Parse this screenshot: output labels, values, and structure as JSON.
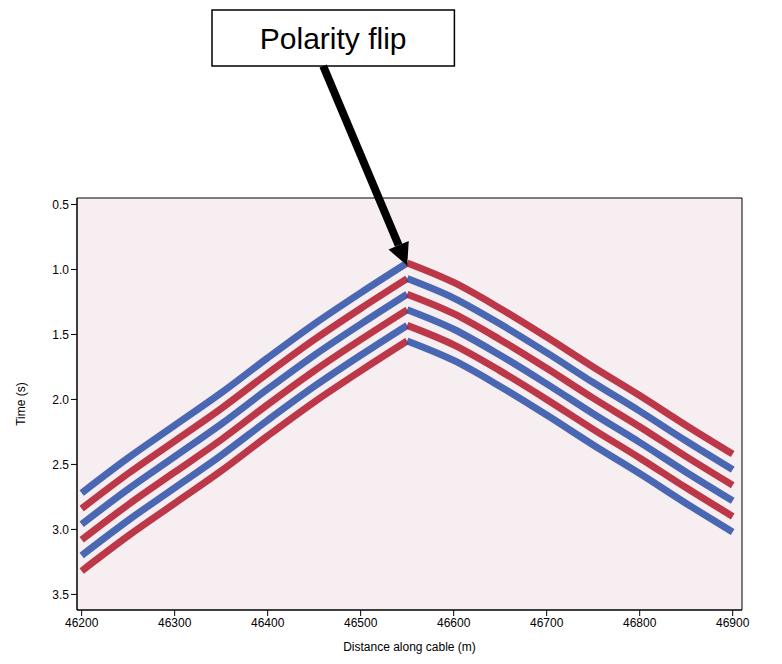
{
  "chart_data": {
    "type": "line",
    "x_label": "Distance along cable (m)",
    "y_label": "Time (s)",
    "annotations": [
      {
        "text": "Polarity flip",
        "x": 46550,
        "y": 0.97
      }
    ],
    "x": [
      46200,
      46250,
      46300,
      46350,
      46400,
      46450,
      46500,
      46550,
      46600,
      46650,
      46700,
      46750,
      46800,
      46850,
      46900
    ],
    "series": [
      {
        "color": "#2c4fa8",
        "values": [
          2.72,
          2.45,
          2.2,
          1.95,
          1.68,
          1.42,
          1.18,
          0.95,
          null,
          null,
          null,
          null,
          null,
          null,
          null
        ]
      },
      {
        "color": "#b2182b",
        "values": [
          2.84,
          2.57,
          2.32,
          2.07,
          1.8,
          1.54,
          1.3,
          1.07,
          null,
          null,
          null,
          null,
          null,
          null,
          null
        ]
      },
      {
        "color": "#2c4fa8",
        "values": [
          2.96,
          2.69,
          2.44,
          2.19,
          1.92,
          1.66,
          1.42,
          1.19,
          null,
          null,
          null,
          null,
          null,
          null,
          null
        ]
      },
      {
        "color": "#b2182b",
        "values": [
          3.08,
          2.81,
          2.56,
          2.31,
          2.04,
          1.78,
          1.54,
          1.31,
          null,
          null,
          null,
          null,
          null,
          null,
          null
        ]
      },
      {
        "color": "#2c4fa8",
        "values": [
          3.2,
          2.93,
          2.68,
          2.43,
          2.16,
          1.9,
          1.66,
          1.43,
          null,
          null,
          null,
          null,
          null,
          null,
          null
        ]
      },
      {
        "color": "#b2182b",
        "values": [
          3.32,
          3.05,
          2.8,
          2.55,
          2.28,
          2.02,
          1.78,
          1.55,
          null,
          null,
          null,
          null,
          null,
          null,
          null
        ]
      },
      {
        "color": "#b2182b",
        "values": [
          null,
          null,
          null,
          null,
          null,
          null,
          null,
          0.95,
          1.1,
          1.3,
          1.52,
          1.75,
          1.97,
          2.2,
          2.42
        ]
      },
      {
        "color": "#2c4fa8",
        "values": [
          null,
          null,
          null,
          null,
          null,
          null,
          null,
          1.07,
          1.22,
          1.42,
          1.64,
          1.87,
          2.09,
          2.32,
          2.54
        ]
      },
      {
        "color": "#b2182b",
        "values": [
          null,
          null,
          null,
          null,
          null,
          null,
          null,
          1.19,
          1.34,
          1.54,
          1.76,
          1.99,
          2.21,
          2.44,
          2.66
        ]
      },
      {
        "color": "#2c4fa8",
        "values": [
          null,
          null,
          null,
          null,
          null,
          null,
          null,
          1.31,
          1.46,
          1.66,
          1.88,
          2.11,
          2.33,
          2.56,
          2.78
        ]
      },
      {
        "color": "#b2182b",
        "values": [
          null,
          null,
          null,
          null,
          null,
          null,
          null,
          1.43,
          1.58,
          1.78,
          2.0,
          2.23,
          2.45,
          2.68,
          2.9
        ]
      },
      {
        "color": "#2c4fa8",
        "values": [
          null,
          null,
          null,
          null,
          null,
          null,
          null,
          1.55,
          1.7,
          1.9,
          2.12,
          2.35,
          2.57,
          2.8,
          3.02
        ]
      }
    ],
    "xlim": [
      46195,
      46910
    ],
    "ylim": [
      0.45,
      3.62
    ],
    "xticks": [
      46200,
      46300,
      46400,
      46500,
      46600,
      46700,
      46800,
      46900
    ],
    "yticks": [
      0.5,
      {
        "value": 1,
        "label": "1.0"
      },
      1.5,
      {
        "value": 2,
        "label": "2.0"
      },
      2.5,
      {
        "value": 3,
        "label": "3.0"
      },
      3.5
    ],
    "grid": false
  }
}
